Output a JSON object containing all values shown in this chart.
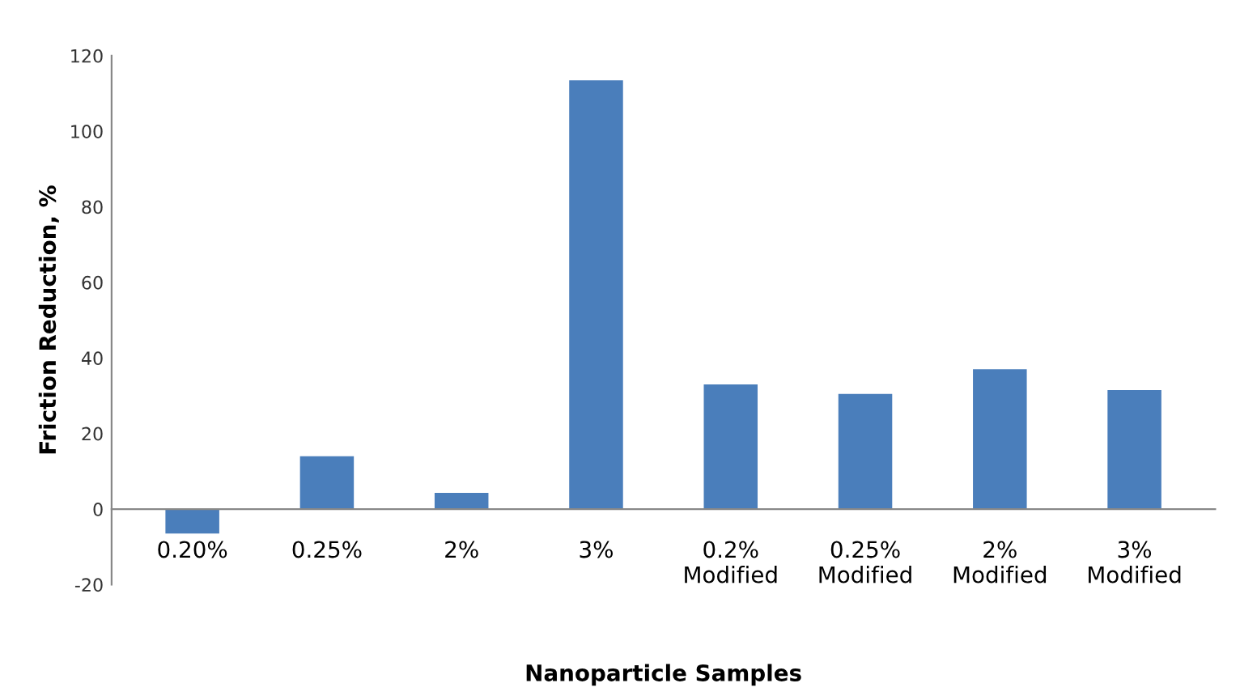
{
  "chart_data": {
    "type": "bar",
    "xlabel": "Nanoparticle Samples",
    "ylabel": "Friction Reduction, %",
    "categories": [
      "0.20%",
      "0.25%",
      "2%",
      "3%",
      "0.2%\nModified",
      "0.25%\nModified",
      "2%\nModified",
      "3%\nModified"
    ],
    "values": [
      -6.5,
      14,
      4.3,
      113.5,
      33,
      30.5,
      37,
      31.5
    ],
    "color": "#4a7ebb",
    "ylim": [
      -20,
      120
    ],
    "yticks": [
      -20,
      0,
      20,
      40,
      60,
      80,
      100,
      120
    ],
    "grid": false
  }
}
